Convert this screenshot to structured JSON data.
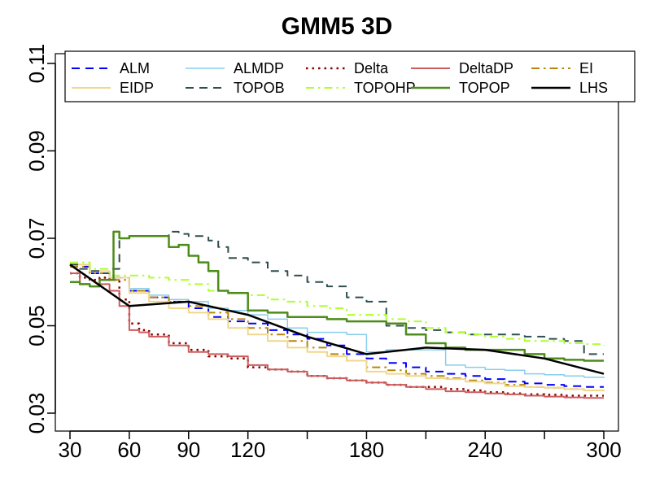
{
  "chart_data": {
    "type": "line",
    "title": "GMM5 3D",
    "xlabel": "",
    "ylabel": "",
    "xlim": [
      30,
      300
    ],
    "ylim": [
      0.03,
      0.11
    ],
    "x_ticks": [
      30,
      60,
      90,
      120,
      150,
      180,
      210,
      240,
      270,
      300
    ],
    "x_tick_labels": [
      "30",
      "60",
      "90",
      "120",
      "",
      "180",
      "",
      "240",
      "",
      "300"
    ],
    "y_ticks": [
      0.03,
      0.05,
      0.07,
      0.09,
      0.11
    ],
    "y_tick_labels": [
      "0.03",
      "0.05",
      "0.07",
      "0.09",
      "0.11"
    ],
    "grid": false,
    "legend_position": "top",
    "series": [
      {
        "name": "ALM",
        "color": "#0000ff",
        "dash": "dashed",
        "width": 2,
        "x": [
          30,
          40,
          50,
          60,
          70,
          80,
          90,
          100,
          110,
          120,
          130,
          140,
          150,
          160,
          170,
          180,
          190,
          200,
          210,
          220,
          230,
          240,
          250,
          260,
          270,
          280,
          290,
          300
        ],
        "y": [
          0.0635,
          0.062,
          0.061,
          0.058,
          0.0565,
          0.0555,
          0.054,
          0.052,
          0.051,
          0.0505,
          0.049,
          0.048,
          0.047,
          0.0455,
          0.0435,
          0.0425,
          0.0415,
          0.0405,
          0.0395,
          0.039,
          0.0385,
          0.0378,
          0.0372,
          0.0368,
          0.0365,
          0.0362,
          0.036,
          0.036
        ]
      },
      {
        "name": "ALMDP",
        "color": "#87ceeb",
        "dash": "solid",
        "width": 1.5,
        "x": [
          30,
          40,
          50,
          60,
          70,
          80,
          90,
          100,
          110,
          120,
          130,
          140,
          150,
          160,
          170,
          180,
          190,
          200,
          210,
          220,
          230,
          240,
          250,
          260,
          270,
          280,
          290,
          300
        ],
        "y": [
          0.064,
          0.0625,
          0.061,
          0.0585,
          0.057,
          0.056,
          0.0555,
          0.054,
          0.0535,
          0.0525,
          0.0515,
          0.0495,
          0.0485,
          0.0485,
          0.048,
          0.044,
          0.0445,
          0.0445,
          0.0445,
          0.041,
          0.0405,
          0.04,
          0.0398,
          0.039,
          0.0388,
          0.0385,
          0.0382,
          0.038
        ]
      },
      {
        "name": "Delta",
        "color": "#8b0000",
        "dash": "dotted",
        "width": 2.5,
        "x": [
          30,
          35,
          40,
          45,
          50,
          55,
          60,
          65,
          70,
          80,
          90,
          100,
          110,
          120,
          130,
          140,
          150,
          160,
          170,
          180,
          190,
          200,
          210,
          220,
          230,
          240,
          250,
          260,
          270,
          280,
          290,
          300
        ],
        "y": [
          0.062,
          0.061,
          0.0605,
          0.061,
          0.0605,
          0.056,
          0.0505,
          0.049,
          0.048,
          0.046,
          0.0445,
          0.043,
          0.0425,
          0.0405,
          0.04,
          0.0395,
          0.0385,
          0.038,
          0.0375,
          0.037,
          0.0365,
          0.036,
          0.036,
          0.0355,
          0.0352,
          0.0348,
          0.0345,
          0.0343,
          0.0342,
          0.034,
          0.034,
          0.034
        ]
      },
      {
        "name": "DeltaDP",
        "color": "#cd5c5c",
        "dash": "solid",
        "width": 2,
        "x": [
          30,
          35,
          40,
          45,
          50,
          55,
          60,
          65,
          70,
          80,
          90,
          100,
          110,
          120,
          130,
          140,
          150,
          160,
          170,
          180,
          190,
          200,
          210,
          220,
          230,
          240,
          250,
          260,
          270,
          280,
          290,
          300
        ],
        "y": [
          0.062,
          0.0595,
          0.059,
          0.0595,
          0.058,
          0.0545,
          0.049,
          0.0485,
          0.0475,
          0.0455,
          0.044,
          0.0435,
          0.043,
          0.041,
          0.04,
          0.0395,
          0.0385,
          0.038,
          0.0375,
          0.037,
          0.0365,
          0.036,
          0.0355,
          0.035,
          0.0348,
          0.0345,
          0.0343,
          0.034,
          0.0338,
          0.0336,
          0.0335,
          0.0335
        ]
      },
      {
        "name": "EI",
        "color": "#b8860b",
        "dash": "dashdot",
        "width": 2,
        "x": [
          30,
          40,
          50,
          60,
          70,
          80,
          90,
          100,
          110,
          120,
          130,
          140,
          150,
          160,
          170,
          180,
          190,
          200,
          210,
          220,
          230,
          240,
          250,
          260,
          270,
          280,
          290,
          300
        ],
        "y": [
          0.0635,
          0.062,
          0.0605,
          0.058,
          0.0565,
          0.0555,
          0.0545,
          0.053,
          0.0515,
          0.0495,
          0.048,
          0.0465,
          0.045,
          0.0435,
          0.042,
          0.0405,
          0.0398,
          0.039,
          0.0385,
          0.038,
          0.0375,
          0.037,
          0.0365,
          0.036,
          0.0358,
          0.0355,
          0.0352,
          0.035
        ]
      },
      {
        "name": "EIDP",
        "color": "#f0d78c",
        "dash": "solid",
        "width": 2,
        "x": [
          30,
          40,
          50,
          60,
          70,
          80,
          90,
          100,
          110,
          120,
          130,
          140,
          150,
          160,
          170,
          180,
          190,
          200,
          210,
          220,
          230,
          240,
          250,
          260,
          270,
          280,
          290,
          300
        ],
        "y": [
          0.064,
          0.0625,
          0.061,
          0.0575,
          0.0555,
          0.054,
          0.053,
          0.0515,
          0.0495,
          0.048,
          0.0465,
          0.045,
          0.044,
          0.043,
          0.042,
          0.0395,
          0.039,
          0.0385,
          0.038,
          0.0378,
          0.0372,
          0.0368,
          0.0362,
          0.036,
          0.0358,
          0.0355,
          0.0352,
          0.035
        ]
      },
      {
        "name": "TOPOB",
        "color": "#2f4f4f",
        "dash": "dashed",
        "width": 2,
        "x": [
          30,
          35,
          40,
          45,
          50,
          55,
          60,
          70,
          80,
          85,
          90,
          100,
          105,
          110,
          120,
          130,
          140,
          150,
          160,
          170,
          180,
          190,
          200,
          210,
          220,
          230,
          240,
          250,
          260,
          270,
          280,
          290,
          300
        ],
        "y": [
          0.064,
          0.063,
          0.0625,
          0.062,
          0.063,
          0.07,
          0.0705,
          0.0705,
          0.0715,
          0.071,
          0.0705,
          0.0695,
          0.068,
          0.0655,
          0.0645,
          0.0625,
          0.0615,
          0.06,
          0.059,
          0.0565,
          0.0555,
          0.05,
          0.0495,
          0.049,
          0.0485,
          0.048,
          0.048,
          0.048,
          0.0475,
          0.047,
          0.0465,
          0.0435,
          0.0435
        ]
      },
      {
        "name": "TOPOHP",
        "color": "#adff2f",
        "dash": "dashdot",
        "width": 2,
        "x": [
          30,
          40,
          50,
          60,
          70,
          80,
          90,
          100,
          110,
          120,
          130,
          140,
          150,
          160,
          170,
          180,
          190,
          200,
          210,
          220,
          230,
          240,
          250,
          260,
          270,
          280,
          290,
          300
        ],
        "y": [
          0.0645,
          0.063,
          0.0615,
          0.0615,
          0.061,
          0.0605,
          0.0595,
          0.058,
          0.0575,
          0.057,
          0.056,
          0.0555,
          0.0545,
          0.054,
          0.0525,
          0.0525,
          0.0515,
          0.051,
          0.0495,
          0.0485,
          0.048,
          0.0475,
          0.047,
          0.0465,
          0.0465,
          0.046,
          0.0458,
          0.0455
        ]
      },
      {
        "name": "TOPOP",
        "color": "#4d8c1a",
        "dash": "solid",
        "width": 2.5,
        "x": [
          30,
          35,
          40,
          45,
          50,
          52,
          55,
          60,
          70,
          80,
          85,
          90,
          95,
          100,
          105,
          110,
          120,
          130,
          140,
          150,
          160,
          170,
          180,
          190,
          200,
          210,
          220,
          230,
          240,
          250,
          260,
          270,
          280,
          290,
          300
        ],
        "y": [
          0.06,
          0.0595,
          0.059,
          0.0605,
          0.0605,
          0.0715,
          0.07,
          0.0705,
          0.0705,
          0.068,
          0.0685,
          0.066,
          0.0645,
          0.0625,
          0.058,
          0.0575,
          0.0535,
          0.053,
          0.052,
          0.052,
          0.0515,
          0.051,
          0.051,
          0.0505,
          0.048,
          0.046,
          0.045,
          0.0445,
          0.0445,
          0.0445,
          0.0435,
          0.0425,
          0.0422,
          0.042,
          0.042
        ]
      },
      {
        "name": "LHS",
        "color": "#000000",
        "dash": "solid",
        "width": 2.5,
        "x": [
          30,
          60,
          90,
          120,
          150,
          180,
          210,
          240,
          270,
          300
        ],
        "y": [
          0.064,
          0.0545,
          0.0555,
          0.0525,
          0.0475,
          0.0435,
          0.045,
          0.0445,
          0.0425,
          0.039
        ]
      }
    ]
  }
}
